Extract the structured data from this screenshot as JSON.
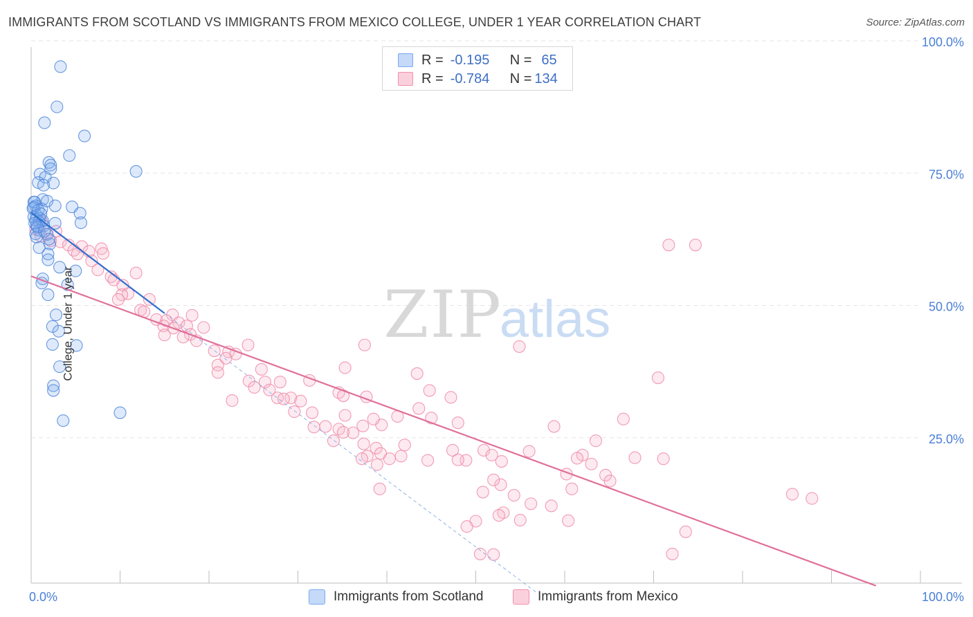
{
  "title": "IMMIGRANTS FROM SCOTLAND VS IMMIGRANTS FROM MEXICO COLLEGE, UNDER 1 YEAR CORRELATION CHART",
  "source": "Source: ZipAtlas.com",
  "watermark": {
    "zip": "ZIP",
    "atlas": "atlas"
  },
  "legend": {
    "r_label": "R =",
    "n_label": "N =",
    "rows": [
      {
        "r": "-0.195",
        "n": "65",
        "color": "#7aaaf0",
        "fill": "#c5d9f8"
      },
      {
        "r": "-0.784",
        "n": "134",
        "color": "#f08fab",
        "fill": "#fbd0dd"
      }
    ]
  },
  "bottom_legend": [
    "Immigrants from Scotland",
    "Immigrants from Mexico"
  ],
  "chart_data": {
    "type": "scatter",
    "xlabel": "",
    "ylabel": "College, Under 1 year",
    "xlim": [
      0,
      100
    ],
    "ylim": [
      0,
      100
    ],
    "x_tick_labels": {
      "left": "0.0%",
      "right": "100.0%"
    },
    "y_tick_labels": [
      "100.0%",
      "75.0%",
      "50.0%",
      "25.0%"
    ],
    "y_tick_values": [
      100,
      75,
      50,
      25
    ],
    "series": [
      {
        "name": "Immigrants from Scotland",
        "color": "#4f86d8",
        "fill": "rgba(122,170,240,0.25)",
        "trend": {
          "x0": 0,
          "y0": 70.0,
          "x1": 15,
          "y1": 51.0,
          "style": "solid",
          "color": "#2f6fd0"
        },
        "trend_ext": {
          "x0": 15,
          "y0": 51.0,
          "x1": 57,
          "y1": -2.0,
          "style": "dashed",
          "color": "#8fb2e6"
        },
        "points": [
          [
            3.3,
            97.6
          ],
          [
            2.9,
            90.0
          ],
          [
            1.5,
            87.0
          ],
          [
            6.0,
            84.5
          ],
          [
            4.3,
            80.8
          ],
          [
            2.0,
            79.5
          ],
          [
            2.2,
            79.0
          ],
          [
            2.2,
            78.3
          ],
          [
            11.8,
            77.8
          ],
          [
            1.0,
            77.3
          ],
          [
            1.6,
            76.7
          ],
          [
            2.5,
            75.6
          ],
          [
            0.8,
            75.7
          ],
          [
            1.4,
            75.2
          ],
          [
            0.3,
            72.0
          ],
          [
            1.3,
            72.5
          ],
          [
            0.4,
            72.0
          ],
          [
            1.8,
            72.2
          ],
          [
            0.5,
            71.3
          ],
          [
            2.7,
            71.3
          ],
          [
            0.3,
            71.0
          ],
          [
            4.6,
            71.1
          ],
          [
            0.2,
            70.8
          ],
          [
            1.2,
            70.7
          ],
          [
            5.5,
            69.9
          ],
          [
            0.6,
            69.5
          ],
          [
            0.3,
            69.2
          ],
          [
            1.0,
            68.9
          ],
          [
            0.5,
            68.6
          ],
          [
            1.3,
            68.5
          ],
          [
            0.9,
            68.3
          ],
          [
            5.6,
            68.1
          ],
          [
            2.7,
            68.0
          ],
          [
            0.6,
            67.6
          ],
          [
            1.4,
            67.5
          ],
          [
            0.9,
            66.7
          ],
          [
            0.5,
            66.0
          ],
          [
            1.8,
            65.9
          ],
          [
            0.6,
            65.4
          ],
          [
            2.1,
            64.1
          ],
          [
            0.9,
            63.4
          ],
          [
            1.9,
            62.2
          ],
          [
            1.9,
            61.1
          ],
          [
            3.2,
            59.7
          ],
          [
            5.0,
            59.0
          ],
          [
            1.3,
            57.5
          ],
          [
            1.2,
            56.7
          ],
          [
            4.1,
            56.4
          ],
          [
            1.9,
            54.5
          ],
          [
            2.8,
            50.7
          ],
          [
            2.4,
            48.5
          ],
          [
            3.1,
            47.6
          ],
          [
            2.4,
            45.1
          ],
          [
            5.1,
            44.9
          ],
          [
            3.2,
            40.9
          ],
          [
            2.5,
            37.3
          ],
          [
            2.5,
            36.4
          ],
          [
            3.6,
            30.7
          ],
          [
            10.0,
            32.2
          ],
          [
            0.8,
            70.5
          ],
          [
            1.1,
            69.8
          ],
          [
            0.4,
            68.0
          ],
          [
            0.7,
            67.3
          ],
          [
            1.5,
            66.5
          ],
          [
            2.0,
            65.0
          ]
        ]
      },
      {
        "name": "Immigrants from Mexico",
        "color": "#ee8aa8",
        "fill": "rgba(248,185,205,0.30)",
        "trend": {
          "x0": 0,
          "y0": 58.0,
          "x1": 95,
          "y1": -0.5,
          "style": "solid",
          "color": "#e0709a"
        },
        "points": [
          [
            1.2,
            68.3
          ],
          [
            2.8,
            66.5
          ],
          [
            0.5,
            66.9
          ],
          [
            1.8,
            66.0
          ],
          [
            1.1,
            65.6
          ],
          [
            2.2,
            64.7
          ],
          [
            3.3,
            64.5
          ],
          [
            4.2,
            63.9
          ],
          [
            5.7,
            63.6
          ],
          [
            7.9,
            63.2
          ],
          [
            4.8,
            62.9
          ],
          [
            6.5,
            62.7
          ],
          [
            8.1,
            62.3
          ],
          [
            5.2,
            62.2
          ],
          [
            6.8,
            60.9
          ],
          [
            7.5,
            59.2
          ],
          [
            11.8,
            58.6
          ],
          [
            9.0,
            57.9
          ],
          [
            9.3,
            57.3
          ],
          [
            10.3,
            56.3
          ],
          [
            10.9,
            54.7
          ],
          [
            10.2,
            54.5
          ],
          [
            13.3,
            53.6
          ],
          [
            9.8,
            53.6
          ],
          [
            12.3,
            51.6
          ],
          [
            12.7,
            51.3
          ],
          [
            15.9,
            50.7
          ],
          [
            18.1,
            50.6
          ],
          [
            14.1,
            49.8
          ],
          [
            15.2,
            49.6
          ],
          [
            16.6,
            49.2
          ],
          [
            14.9,
            48.6
          ],
          [
            17.5,
            48.6
          ],
          [
            19.4,
            48.3
          ],
          [
            16.0,
            48.2
          ],
          [
            17.9,
            47.0
          ],
          [
            15.0,
            46.9
          ],
          [
            17.1,
            46.5
          ],
          [
            18.6,
            45.8
          ],
          [
            24.4,
            45.0
          ],
          [
            20.6,
            43.9
          ],
          [
            22.2,
            43.7
          ],
          [
            23.0,
            43.3
          ],
          [
            21.9,
            42.5
          ],
          [
            21.0,
            41.2
          ],
          [
            25.9,
            40.4
          ],
          [
            21.0,
            39.8
          ],
          [
            35.3,
            40.7
          ],
          [
            31.3,
            38.3
          ],
          [
            24.5,
            38.2
          ],
          [
            26.3,
            38.0
          ],
          [
            28.0,
            38.0
          ],
          [
            25.1,
            37.0
          ],
          [
            26.8,
            36.5
          ],
          [
            34.6,
            36.0
          ],
          [
            35.1,
            35.4
          ],
          [
            37.7,
            35.2
          ],
          [
            27.7,
            35.0
          ],
          [
            29.2,
            35.0
          ],
          [
            28.4,
            34.8
          ],
          [
            22.6,
            34.5
          ],
          [
            30.3,
            34.4
          ],
          [
            29.6,
            32.4
          ],
          [
            31.6,
            32.2
          ],
          [
            35.3,
            31.7
          ],
          [
            41.2,
            31.5
          ],
          [
            39.4,
            29.9
          ],
          [
            37.3,
            29.7
          ],
          [
            33.1,
            29.6
          ],
          [
            31.8,
            29.5
          ],
          [
            34.6,
            29.1
          ],
          [
            36.2,
            28.4
          ],
          [
            34.0,
            26.9
          ],
          [
            37.4,
            26.3
          ],
          [
            42.0,
            26.1
          ],
          [
            38.8,
            25.5
          ],
          [
            39.3,
            24.5
          ],
          [
            37.8,
            24.0
          ],
          [
            41.6,
            24.0
          ],
          [
            37.2,
            23.5
          ],
          [
            40.3,
            23.5
          ],
          [
            38.9,
            22.4
          ],
          [
            44.6,
            23.2
          ],
          [
            48.9,
            23.2
          ],
          [
            47.4,
            25.1
          ],
          [
            50.9,
            25.1
          ],
          [
            48.0,
            23.3
          ],
          [
            51.8,
            24.2
          ],
          [
            52.9,
            23.0
          ],
          [
            56.0,
            24.9
          ],
          [
            62.0,
            24.2
          ],
          [
            63.5,
            26.9
          ],
          [
            61.4,
            23.6
          ],
          [
            63.0,
            22.5
          ],
          [
            64.6,
            20.4
          ],
          [
            60.8,
            17.8
          ],
          [
            60.2,
            20.6
          ],
          [
            67.9,
            23.7
          ],
          [
            52.8,
            18.6
          ],
          [
            50.8,
            17.2
          ],
          [
            54.3,
            16.6
          ],
          [
            53.1,
            13.3
          ],
          [
            52.6,
            12.8
          ],
          [
            56.2,
            15.0
          ],
          [
            55.0,
            11.9
          ],
          [
            58.5,
            14.6
          ],
          [
            50.0,
            11.7
          ],
          [
            52.0,
            19.5
          ],
          [
            60.4,
            11.8
          ],
          [
            39.2,
            17.8
          ],
          [
            35.1,
            28.5
          ],
          [
            38.5,
            31.0
          ],
          [
            43.4,
            39.6
          ],
          [
            44.8,
            36.4
          ],
          [
            43.6,
            33.0
          ],
          [
            37.5,
            45.0
          ],
          [
            47.2,
            35.1
          ],
          [
            48.0,
            30.3
          ],
          [
            54.9,
            44.7
          ],
          [
            58.8,
            29.6
          ],
          [
            66.6,
            31.0
          ],
          [
            65.1,
            19.3
          ],
          [
            71.1,
            23.5
          ],
          [
            73.6,
            9.7
          ],
          [
            72.1,
            5.5
          ],
          [
            85.6,
            16.8
          ],
          [
            87.8,
            16.0
          ],
          [
            71.7,
            63.9
          ],
          [
            74.7,
            63.9
          ],
          [
            70.5,
            38.8
          ],
          [
            45.0,
            31.2
          ],
          [
            49.0,
            10.7
          ],
          [
            52.0,
            5.4
          ],
          [
            50.5,
            5.5
          ]
        ]
      }
    ]
  }
}
